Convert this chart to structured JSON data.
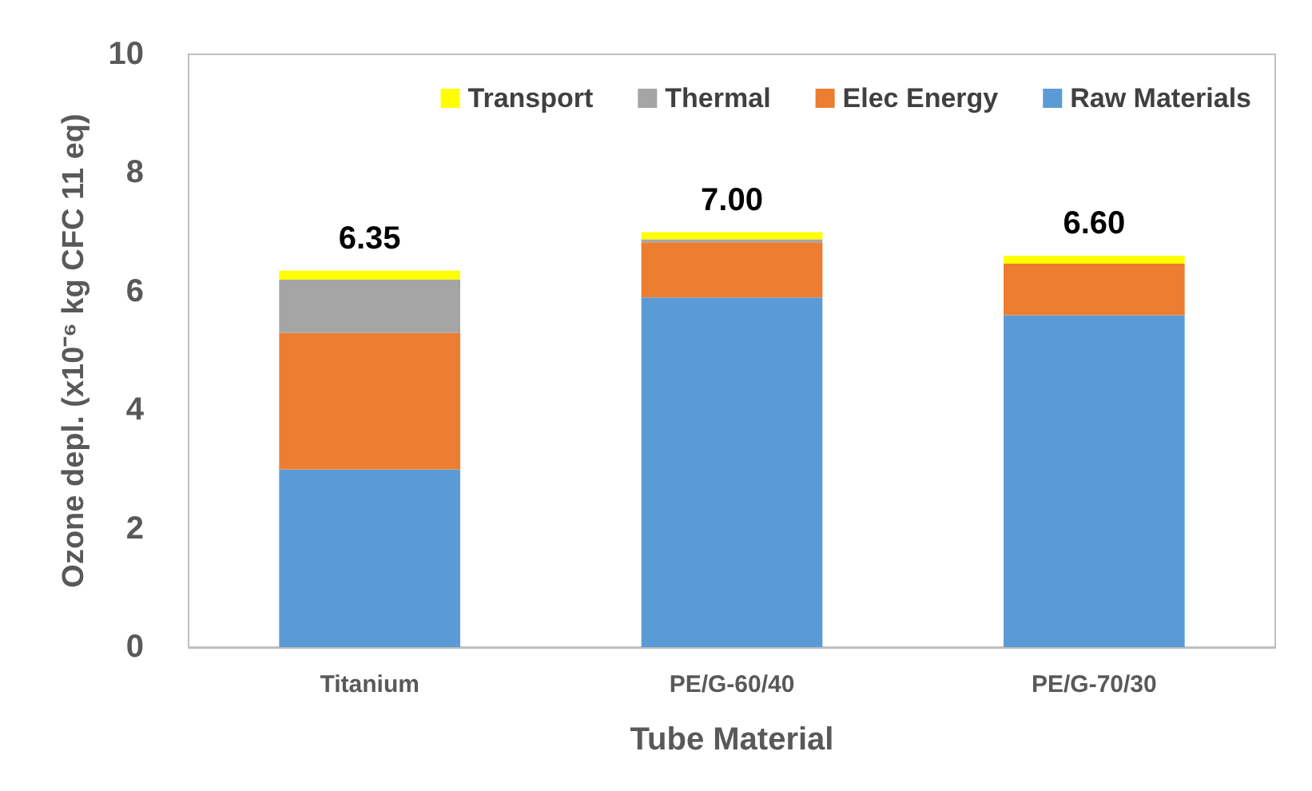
{
  "chart_data": {
    "type": "bar",
    "stacked": true,
    "xlabel": "Tube Material",
    "ylabel": "Ozone depl. (x10⁻⁶ kg CFC 11 eq)",
    "categories": [
      "Titanium",
      "PE/G-60/40",
      "PE/G-70/30"
    ],
    "series": [
      {
        "name": "Raw Materials",
        "color": "#5b9bd5",
        "values": [
          3.0,
          5.9,
          5.6
        ]
      },
      {
        "name": "Elec Energy",
        "color": "#ed7d31",
        "values": [
          2.3,
          0.93,
          0.87
        ]
      },
      {
        "name": "Thermal",
        "color": "#a5a5a5",
        "values": [
          0.9,
          0.05,
          0.0
        ]
      },
      {
        "name": "Transport",
        "color": "#ffff00",
        "values": [
          0.15,
          0.12,
          0.13
        ]
      }
    ],
    "totals": [
      "6.35",
      "7.00",
      "6.60"
    ],
    "ylim": [
      0,
      10
    ],
    "yticks": [
      0,
      2,
      4,
      6,
      8,
      10
    ],
    "grid": false,
    "legend": "top right"
  }
}
